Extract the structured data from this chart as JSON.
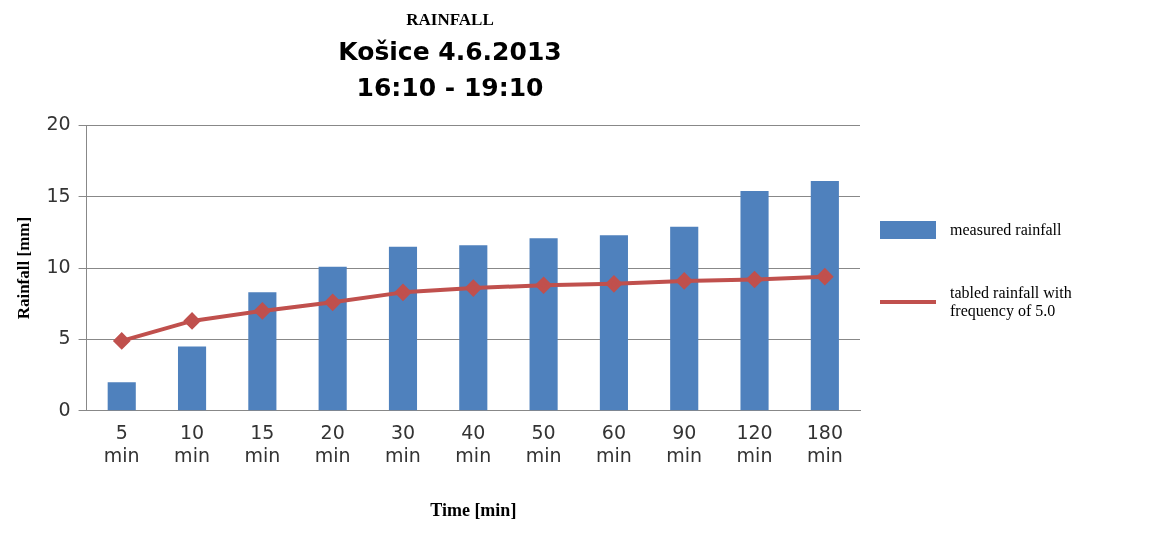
{
  "chart_data": {
    "type": "bar",
    "title": "RAINFALL",
    "subtitle": "Košice 4.6.2013\n16:10 - 19:10",
    "xlabel": "Time [min]",
    "ylabel": "Rainfall [mm]",
    "categories": [
      "5 min",
      "10 min",
      "15 min",
      "20 min",
      "30 min",
      "40 min",
      "50 min",
      "60 min",
      "90 min",
      "120 min",
      "180 min"
    ],
    "series": [
      {
        "name": "measured rainfall",
        "color": "#4f81bd",
        "values": [
          2.0,
          4.5,
          8.3,
          10.1,
          11.5,
          11.6,
          12.1,
          12.3,
          12.9,
          15.4,
          16.1
        ]
      },
      {
        "name": "tabled rainfall with frequency of 5.0",
        "type": "line",
        "color": "#c0504d",
        "marker": "diamond",
        "values": [
          4.9,
          6.3,
          7.0,
          7.6,
          8.3,
          8.6,
          8.8,
          8.9,
          9.1,
          9.2,
          9.4
        ]
      }
    ],
    "ylim": [
      0,
      20
    ],
    "yticks": [
      0,
      5,
      10,
      15,
      20
    ],
    "grid": "y",
    "legend": "right"
  }
}
